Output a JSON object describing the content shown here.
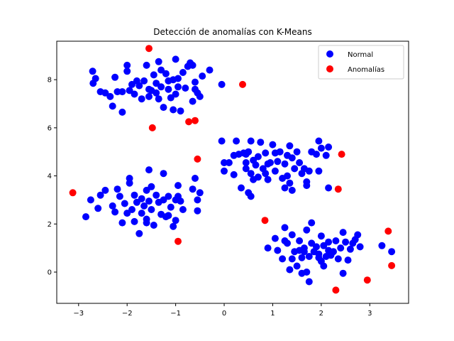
{
  "chart_data": {
    "type": "scatter",
    "title": "Detección de anomalías con K-Means",
    "xlabel": "",
    "ylabel": "",
    "xlim": [
      -3.45,
      3.8
    ],
    "ylim": [
      -1.3,
      9.6
    ],
    "xticks": [
      -3,
      -2,
      -1,
      0,
      1,
      2,
      3
    ],
    "yticks": [
      0,
      2,
      4,
      6,
      8
    ],
    "grid": false,
    "legend_position": "top-right",
    "series": [
      {
        "name": "Normal",
        "color": "#0000ff",
        "points": [
          [
            -2.71,
            8.35
          ],
          [
            -2.7,
            7.85
          ],
          [
            -2.65,
            8.05
          ],
          [
            -2.55,
            7.5
          ],
          [
            -2.45,
            7.45
          ],
          [
            -2.35,
            7.3
          ],
          [
            -2.3,
            6.9
          ],
          [
            -2.25,
            8.1
          ],
          [
            -2.2,
            7.5
          ],
          [
            -2.1,
            7.5
          ],
          [
            -2.1,
            6.65
          ],
          [
            -2.0,
            8.6
          ],
          [
            -2.0,
            8.35
          ],
          [
            -1.95,
            7.55
          ],
          [
            -1.9,
            7.8
          ],
          [
            -1.85,
            7.4
          ],
          [
            -1.8,
            7.95
          ],
          [
            -1.75,
            7.75
          ],
          [
            -1.7,
            7.2
          ],
          [
            -1.65,
            7.95
          ],
          [
            -1.6,
            8.6
          ],
          [
            -1.55,
            7.6
          ],
          [
            -1.55,
            7.3
          ],
          [
            -1.5,
            7.55
          ],
          [
            -1.45,
            8.2
          ],
          [
            -1.4,
            7.85
          ],
          [
            -1.4,
            7.45
          ],
          [
            -1.35,
            8.75
          ],
          [
            -1.35,
            7.2
          ],
          [
            -1.3,
            8.4
          ],
          [
            -1.3,
            7.7
          ],
          [
            -1.25,
            6.85
          ],
          [
            -1.2,
            8.25
          ],
          [
            -1.15,
            7.95
          ],
          [
            -1.15,
            7.6
          ],
          [
            -1.1,
            7.25
          ],
          [
            -1.05,
            6.75
          ],
          [
            -1.05,
            8.0
          ],
          [
            -1.0,
            8.85
          ],
          [
            -1.0,
            7.4
          ],
          [
            -0.95,
            8.05
          ],
          [
            -0.95,
            7.7
          ],
          [
            -0.9,
            6.7
          ],
          [
            -0.85,
            8.3
          ],
          [
            -0.8,
            7.65
          ],
          [
            -0.75,
            8.55
          ],
          [
            -0.7,
            8.7
          ],
          [
            -0.65,
            7.1
          ],
          [
            -0.65,
            8.6
          ],
          [
            -0.6,
            7.9
          ],
          [
            -0.6,
            7.6
          ],
          [
            -0.55,
            7.45
          ],
          [
            -0.5,
            7.3
          ],
          [
            -0.45,
            8.15
          ],
          [
            -0.3,
            8.4
          ],
          [
            -0.05,
            7.8
          ],
          [
            -2.85,
            2.3
          ],
          [
            -2.75,
            3.0
          ],
          [
            -2.6,
            2.65
          ],
          [
            -2.55,
            3.2
          ],
          [
            -2.45,
            3.4
          ],
          [
            -2.3,
            2.75
          ],
          [
            -2.25,
            2.5
          ],
          [
            -2.2,
            3.45
          ],
          [
            -2.15,
            3.15
          ],
          [
            -2.1,
            2.05
          ],
          [
            -2.05,
            2.85
          ],
          [
            -2.0,
            2.45
          ],
          [
            -1.95,
            3.7
          ],
          [
            -1.9,
            2.6
          ],
          [
            -1.85,
            3.2
          ],
          [
            -1.85,
            2.1
          ],
          [
            -1.8,
            2.9
          ],
          [
            -1.75,
            1.6
          ],
          [
            -1.7,
            3.05
          ],
          [
            -1.7,
            2.45
          ],
          [
            -1.65,
            2.75
          ],
          [
            -1.6,
            3.4
          ],
          [
            -1.6,
            2.2
          ],
          [
            -1.55,
            4.25
          ],
          [
            -1.55,
            2.95
          ],
          [
            -1.5,
            3.55
          ],
          [
            -1.5,
            2.6
          ],
          [
            -1.45,
            1.95
          ],
          [
            -1.4,
            3.2
          ],
          [
            -1.35,
            2.9
          ],
          [
            -1.3,
            2.4
          ],
          [
            -1.25,
            4.1
          ],
          [
            -1.25,
            3.0
          ],
          [
            -1.2,
            2.3
          ],
          [
            -1.15,
            3.15
          ],
          [
            -1.1,
            2.7
          ],
          [
            -1.05,
            1.9
          ],
          [
            -1.0,
            3.0
          ],
          [
            -1.0,
            2.15
          ],
          [
            -0.95,
            3.15
          ],
          [
            -0.95,
            3.6
          ],
          [
            -0.9,
            2.95
          ],
          [
            -0.85,
            2.6
          ],
          [
            -0.65,
            3.45
          ],
          [
            -0.6,
            3.9
          ],
          [
            -0.55,
            3.0
          ],
          [
            -0.55,
            2.55
          ],
          [
            -0.5,
            3.3
          ],
          [
            -1.95,
            3.9
          ],
          [
            -1.6,
            2.05
          ],
          [
            -1.15,
            2.35
          ],
          [
            -0.05,
            5.45
          ],
          [
            0.0,
            4.55
          ],
          [
            0.0,
            4.2
          ],
          [
            0.1,
            4.55
          ],
          [
            0.2,
            4.05
          ],
          [
            0.2,
            4.85
          ],
          [
            0.25,
            5.45
          ],
          [
            0.3,
            4.9
          ],
          [
            0.35,
            3.5
          ],
          [
            0.4,
            4.95
          ],
          [
            0.45,
            4.55
          ],
          [
            0.45,
            4.3
          ],
          [
            0.5,
            5.0
          ],
          [
            0.5,
            3.3
          ],
          [
            0.55,
            4.1
          ],
          [
            0.55,
            5.45
          ],
          [
            0.6,
            4.65
          ],
          [
            0.65,
            4.45
          ],
          [
            0.7,
            3.95
          ],
          [
            0.7,
            4.8
          ],
          [
            0.75,
            5.4
          ],
          [
            0.8,
            4.3
          ],
          [
            0.85,
            4.95
          ],
          [
            0.9,
            3.85
          ],
          [
            0.95,
            4.55
          ],
          [
            1.0,
            5.3
          ],
          [
            1.05,
            4.2
          ],
          [
            1.1,
            4.6
          ],
          [
            1.15,
            5.0
          ],
          [
            1.2,
            3.9
          ],
          [
            1.25,
            4.5
          ],
          [
            1.3,
            4.0
          ],
          [
            1.35,
            5.25
          ],
          [
            1.35,
            3.7
          ],
          [
            1.4,
            4.75
          ],
          [
            1.4,
            3.4
          ],
          [
            1.45,
            4.3
          ],
          [
            1.5,
            5.0
          ],
          [
            1.55,
            4.55
          ],
          [
            1.6,
            4.1
          ],
          [
            1.65,
            4.3
          ],
          [
            1.7,
            3.6
          ],
          [
            1.75,
            4.2
          ],
          [
            1.8,
            5.0
          ],
          [
            1.9,
            4.9
          ],
          [
            1.95,
            5.45
          ],
          [
            2.0,
            5.15
          ],
          [
            2.1,
            4.85
          ],
          [
            2.15,
            5.2
          ],
          [
            2.15,
            3.5
          ],
          [
            0.85,
            4.1
          ],
          [
            1.25,
            3.5
          ],
          [
            0.9,
            4.5
          ],
          [
            1.7,
            3.75
          ],
          [
            0.55,
            3.15
          ],
          [
            1.95,
            4.2
          ],
          [
            0.45,
            4.9
          ],
          [
            1.05,
            4.95
          ],
          [
            1.3,
            4.85
          ],
          [
            0.6,
            3.85
          ],
          [
            0.9,
            1.0
          ],
          [
            1.05,
            1.4
          ],
          [
            1.1,
            0.9
          ],
          [
            1.2,
            0.55
          ],
          [
            1.25,
            1.85
          ],
          [
            1.3,
            1.2
          ],
          [
            1.35,
            0.1
          ],
          [
            1.4,
            1.55
          ],
          [
            1.45,
            0.85
          ],
          [
            1.5,
            0.25
          ],
          [
            1.55,
            1.3
          ],
          [
            1.6,
            0.6
          ],
          [
            1.6,
            -0.05
          ],
          [
            1.65,
            1.0
          ],
          [
            1.7,
            1.75
          ],
          [
            1.7,
            0.0
          ],
          [
            1.75,
            -0.4
          ],
          [
            1.75,
            0.65
          ],
          [
            1.8,
            1.2
          ],
          [
            1.8,
            2.05
          ],
          [
            1.85,
            0.85
          ],
          [
            1.9,
            1.05
          ],
          [
            1.95,
            0.6
          ],
          [
            1.95,
            0.75
          ],
          [
            2.0,
            1.5
          ],
          [
            2.0,
            0.45
          ],
          [
            2.05,
            0.25
          ],
          [
            2.05,
            1.1
          ],
          [
            2.1,
            0.65
          ],
          [
            2.15,
            1.25
          ],
          [
            2.2,
            0.7
          ],
          [
            2.25,
            0.85
          ],
          [
            2.3,
            1.3
          ],
          [
            2.35,
            0.55
          ],
          [
            2.4,
            1.0
          ],
          [
            2.45,
            1.65
          ],
          [
            2.45,
            -0.05
          ],
          [
            2.5,
            1.25
          ],
          [
            2.55,
            0.5
          ],
          [
            2.6,
            0.95
          ],
          [
            2.65,
            1.2
          ],
          [
            2.7,
            1.35
          ],
          [
            2.75,
            1.55
          ],
          [
            2.8,
            1.05
          ],
          [
            3.25,
            1.1
          ],
          [
            3.45,
            0.85
          ],
          [
            1.25,
            1.3
          ],
          [
            1.4,
            0.55
          ],
          [
            1.65,
            0.85
          ],
          [
            2.15,
            0.9
          ],
          [
            1.55,
            0.9
          ]
        ]
      },
      {
        "name": "Anomalías",
        "color": "#ff0000",
        "points": [
          [
            -1.55,
            9.3
          ],
          [
            0.38,
            7.8
          ],
          [
            -1.48,
            6.0
          ],
          [
            -0.73,
            6.25
          ],
          [
            -0.6,
            6.3
          ],
          [
            -0.55,
            4.7
          ],
          [
            2.42,
            4.9
          ],
          [
            -3.12,
            3.3
          ],
          [
            2.35,
            3.45
          ],
          [
            0.84,
            2.15
          ],
          [
            -0.95,
            1.28
          ],
          [
            3.38,
            1.7
          ],
          [
            3.45,
            0.27
          ],
          [
            2.3,
            -0.75
          ],
          [
            2.95,
            -0.33
          ]
        ]
      }
    ]
  }
}
